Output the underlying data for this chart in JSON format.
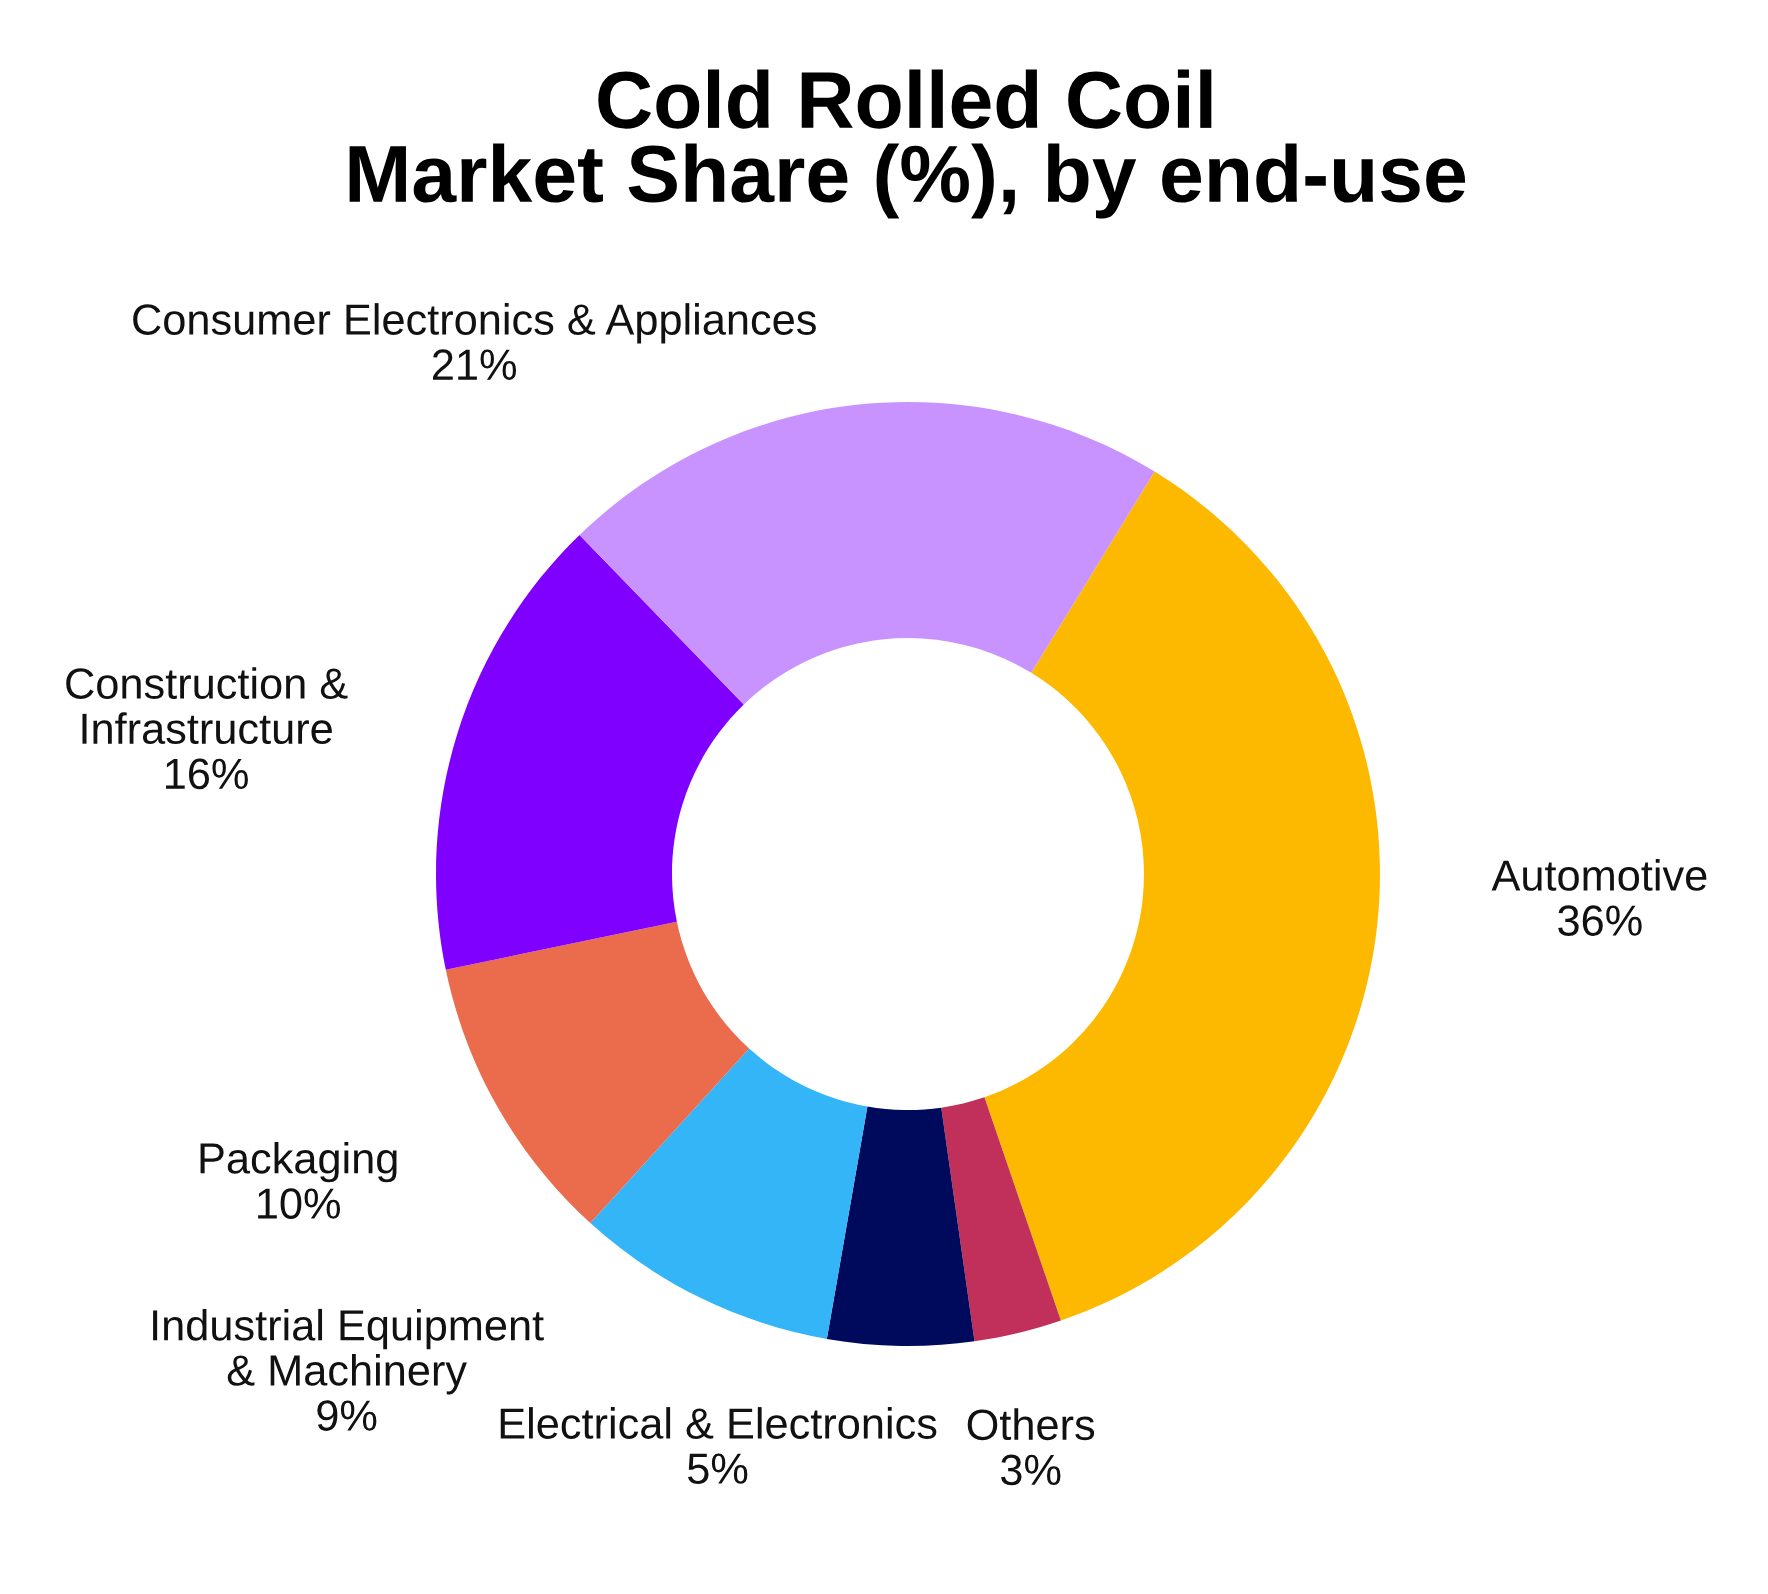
{
  "chart_data": {
    "type": "donut",
    "title": "Cold Rolled Coil\nMarket Share (%), by end-use",
    "categories": [
      "Automotive",
      "Others",
      "Electrical & Electronics",
      "Industrial Equipment\n& Machinery",
      "Packaging",
      "Construction &\nInfrastructure",
      "Consumer Electronics & Appliances"
    ],
    "values": [
      36,
      3,
      5,
      9,
      10,
      16,
      21
    ],
    "colors": [
      "#fcb900",
      "#c0305a",
      "#000a5c",
      "#33b5f7",
      "#ea6c4c",
      "#8000ff",
      "#c893ff"
    ],
    "value_labels": [
      "36%",
      "3%",
      "5%",
      "9%",
      "10%",
      "16%",
      "21%"
    ]
  }
}
